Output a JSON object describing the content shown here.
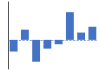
{
  "chart_data": {
    "type": "bar",
    "categories": [
      null,
      null,
      null,
      null,
      null,
      null,
      null,
      null
    ],
    "values": [
      -4.0,
      3.5,
      -7.5,
      -3.0,
      -1.5,
      9.5,
      2.5,
      4.5
    ],
    "color": "#4472c4",
    "ylim": [
      -10,
      13
    ],
    "reference_y": 0,
    "grid": false,
    "tick_labels": false
  }
}
